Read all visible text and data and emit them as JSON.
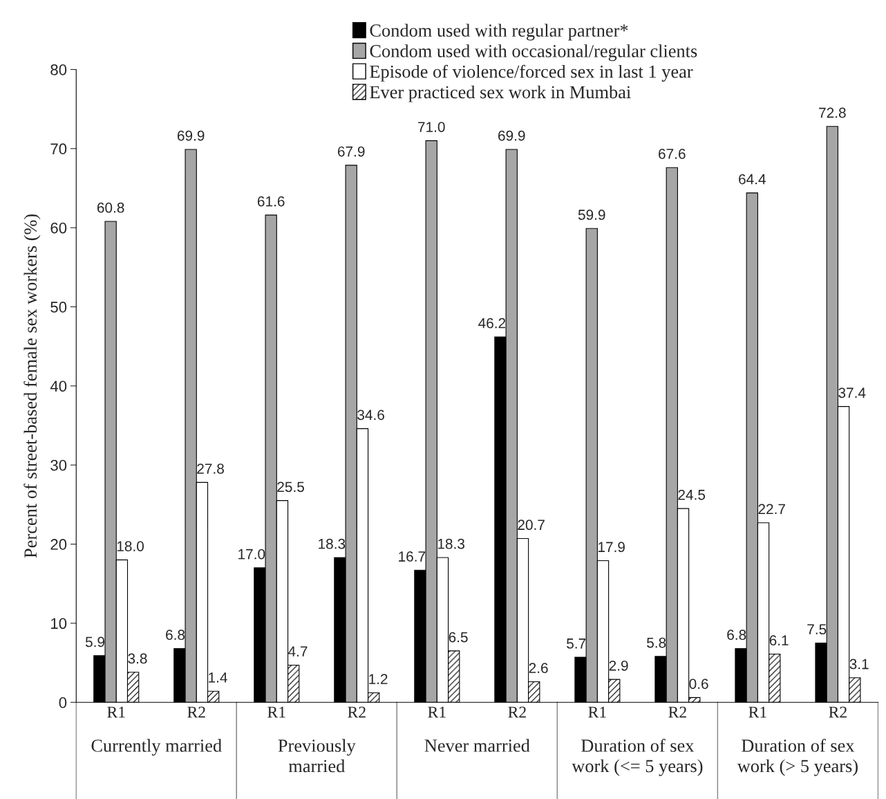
{
  "chart_data": {
    "type": "bar",
    "ylabel": "Percent of street-based female sex workers (%)",
    "categories": [
      "R1",
      "R2",
      "R1",
      "R2",
      "R1",
      "R2",
      "R1",
      "R2",
      "R1",
      "R2"
    ],
    "annotations": [
      "Currently married",
      "Previously\nmarried",
      "Never married",
      "Duration of sex\nwork (<= 5 years)",
      "Duration of sex\nwork (> 5 years)"
    ],
    "series": [
      {
        "name": "Condom used with regular partner*",
        "color": "#000000",
        "values": [
          5.9,
          6.8,
          17.0,
          18.3,
          16.7,
          46.2,
          5.7,
          5.8,
          6.8,
          7.5
        ],
        "value_labels": [
          "5.9",
          "6.8",
          "17.0",
          "18.3",
          "16.7",
          "46.2",
          "5.7",
          "5.8",
          "6.8",
          "7.5"
        ]
      },
      {
        "name": "Condom used with occasional/regular clients",
        "color": "#a6a6a6",
        "values": [
          60.8,
          69.9,
          61.6,
          67.9,
          71.0,
          69.9,
          59.9,
          67.6,
          64.4,
          72.8
        ],
        "value_labels": [
          "60.8",
          "69.9",
          "61.6",
          "67.9",
          "71.0",
          "69.9",
          "59.9",
          "67.6",
          "64.4",
          "72.8"
        ]
      },
      {
        "name": "Episode of violence/forced sex in last 1 year",
        "color": "#ffffff",
        "values": [
          18.0,
          27.8,
          25.5,
          34.6,
          18.3,
          20.7,
          17.9,
          24.5,
          22.7,
          37.4
        ],
        "value_labels": [
          "18.0",
          "27.8",
          "25.5",
          "34.6",
          "18.3",
          "20.7",
          "17.9",
          "24.5",
          "22.7",
          "37.4"
        ]
      },
      {
        "name": "Ever practiced sex work in Mumbai",
        "color": "#000000",
        "values": [
          3.8,
          1.4,
          4.7,
          1.2,
          6.5,
          2.6,
          2.9,
          0.6,
          6.1,
          3.1
        ],
        "value_labels": [
          "3.8",
          "1.4",
          "4.7",
          "1.2",
          "6.5",
          "2.6",
          "2.9",
          "0.6",
          "6.1",
          "3.1"
        ]
      }
    ],
    "ylim": [
      0,
      80
    ],
    "yticks": [
      0,
      10,
      20,
      30,
      40,
      50,
      60,
      70,
      80
    ],
    "grid": false,
    "legend": "top"
  }
}
